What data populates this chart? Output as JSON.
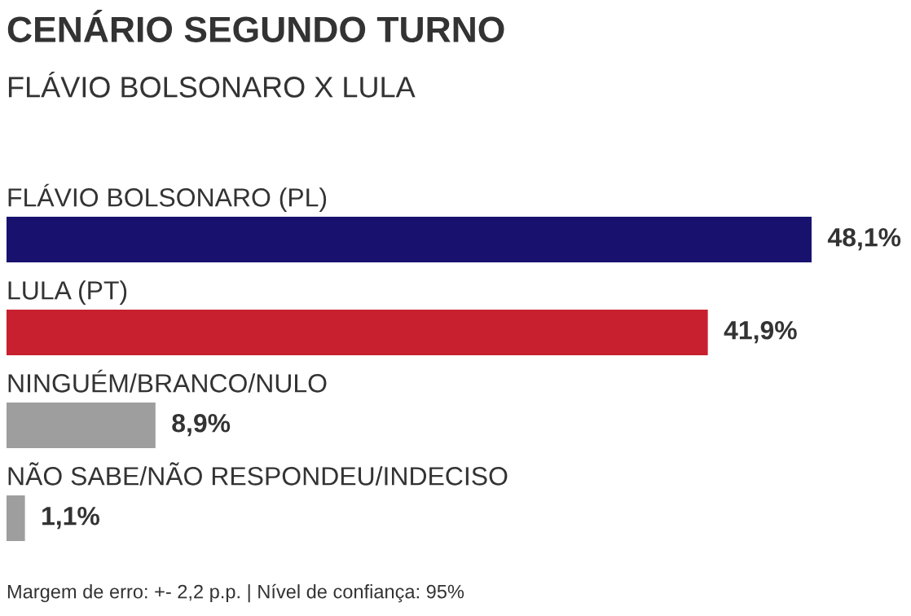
{
  "chart_data": {
    "type": "bar",
    "orientation": "horizontal",
    "title": "CENÁRIO SEGUNDO TURNO",
    "subtitle": "FLÁVIO BOLSONARO X LULA",
    "categories": [
      "FLÁVIO BOLSONARO (PL)",
      "LULA (PT)",
      "NINGUÉM/BRANCO/NULO",
      "NÃO SABE/NÃO RESPONDEU/INDECISO"
    ],
    "values": [
      48.1,
      41.9,
      8.9,
      1.1
    ],
    "colors": [
      "#18126e",
      "#c8202e",
      "#9e9e9e",
      "#9e9e9e"
    ],
    "value_labels": [
      "48,1%",
      "41,9%",
      "8,9%",
      "1,1%"
    ],
    "annotations": [
      "Margem de erro: +- 2,2 p.p. | Nível de confiança: 95%"
    ]
  }
}
